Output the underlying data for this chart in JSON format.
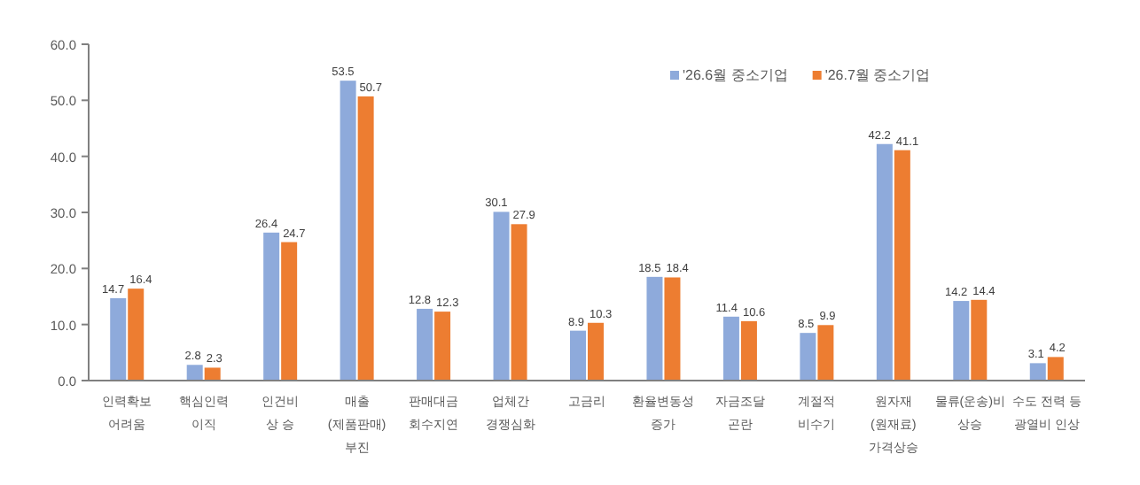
{
  "chart_data": {
    "type": "bar",
    "categories": [
      "인력확보\n어려움",
      "핵심인력\n이직",
      "인건비\n상 승",
      "매출\n(제품판매)\n부진",
      "판매대금\n회수지연",
      "업체간\n경쟁심화",
      "고금리",
      "환율변동성\n증가",
      "자금조달\n곤란",
      "계절적\n비수기",
      "원자재\n(원재료)\n가격상승",
      "물류(운송)비\n상승",
      "수도 전력 등\n광열비 인상"
    ],
    "series": [
      {
        "name": "'26.6월 중소기업",
        "color": "#8eaadb",
        "values": [
          14.7,
          2.8,
          26.4,
          53.5,
          12.8,
          30.1,
          8.9,
          18.5,
          11.4,
          8.5,
          42.2,
          14.2,
          3.1
        ]
      },
      {
        "name": "'26.7월 중소기업",
        "color": "#ed7d31",
        "values": [
          16.4,
          2.3,
          24.7,
          50.7,
          12.3,
          27.9,
          10.3,
          18.4,
          10.6,
          9.9,
          41.1,
          14.4,
          4.2
        ]
      }
    ],
    "ylim": [
      0,
      60
    ],
    "yticks": [
      "0.0",
      "10.0",
      "20.0",
      "30.0",
      "40.0",
      "50.0",
      "60.0"
    ],
    "data_labels": true,
    "legend": "top right",
    "grid": false
  }
}
